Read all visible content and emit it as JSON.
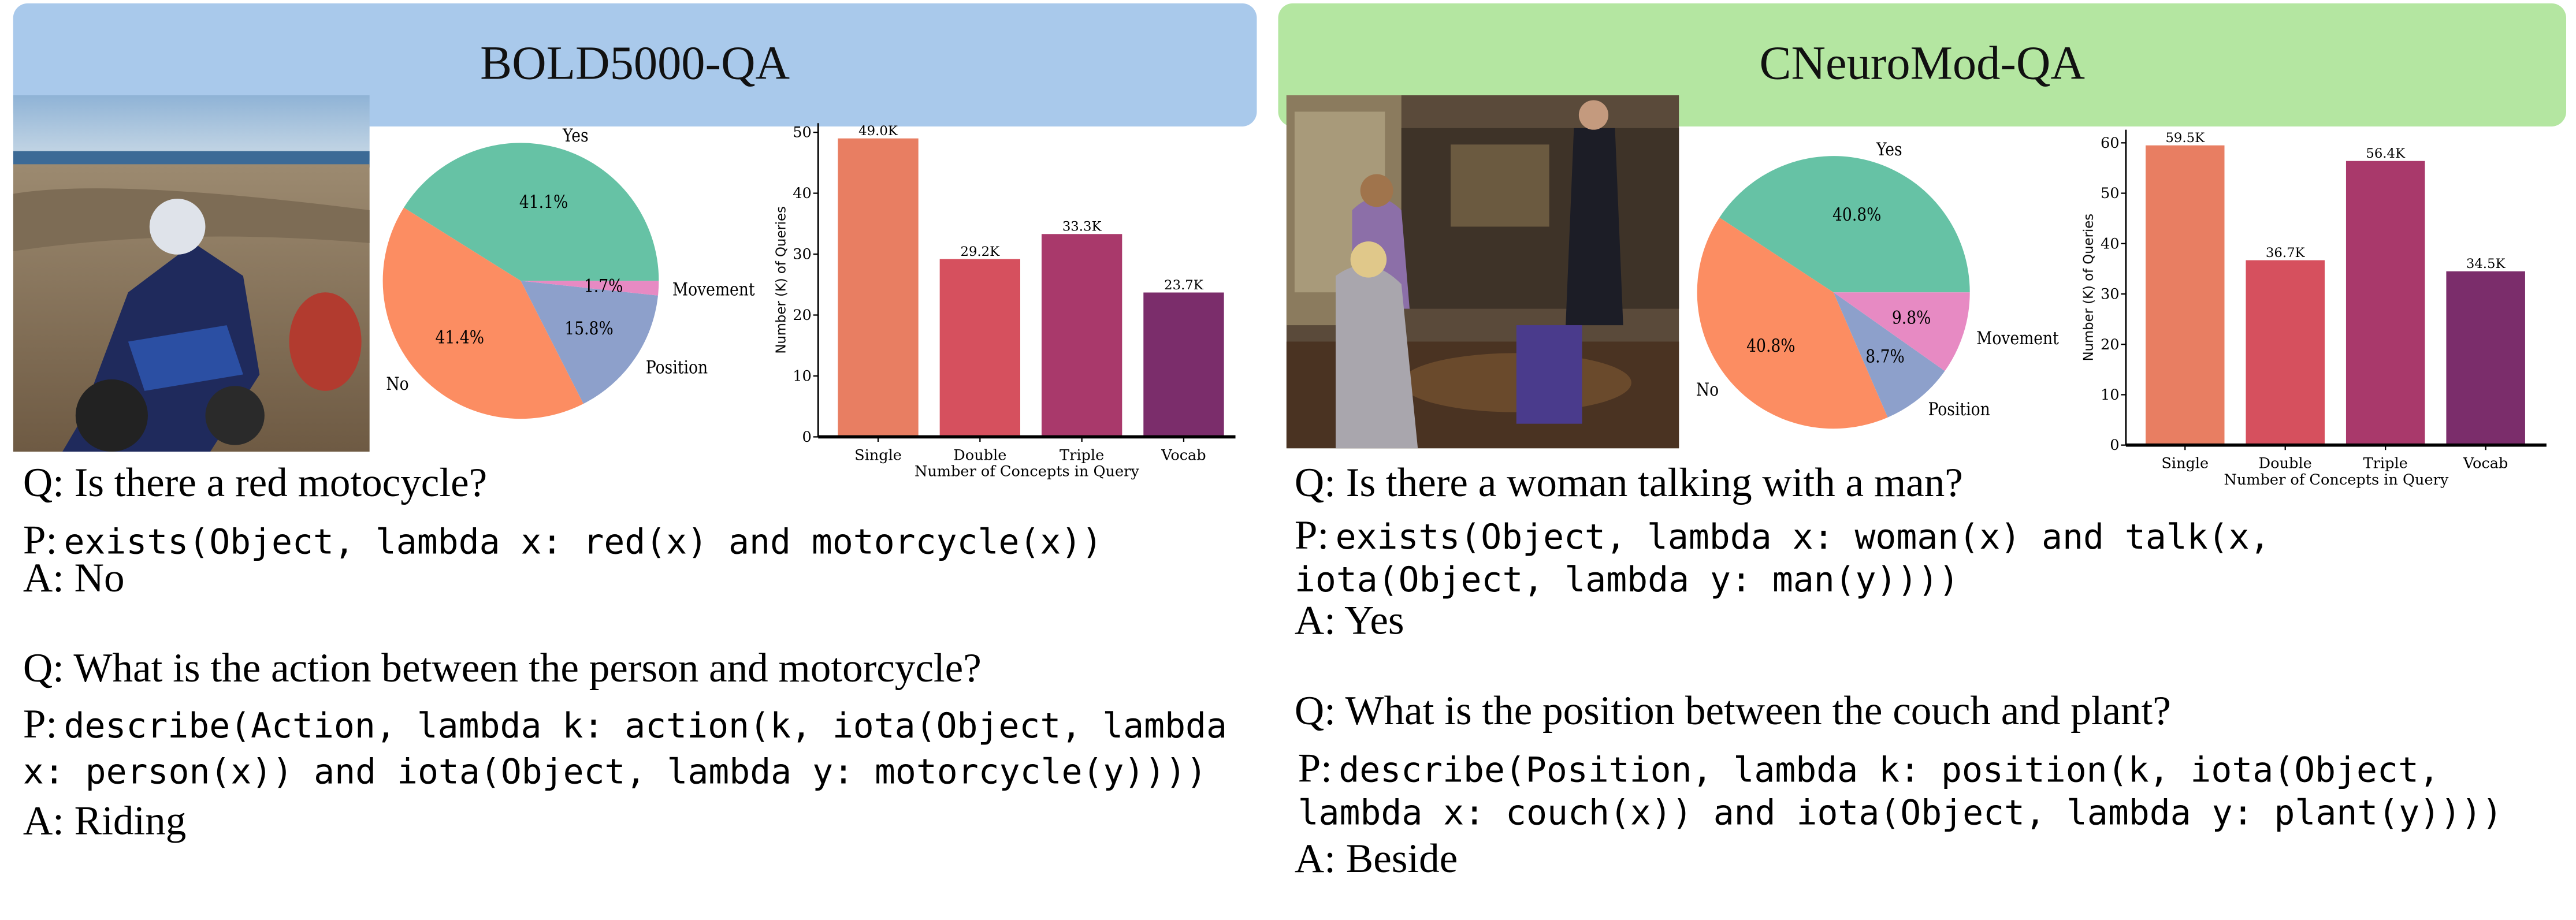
{
  "panels": [
    {
      "title": "BOLD5000-QA",
      "header_color": "#a9c9eb",
      "image": "motocross-rider-photo",
      "examples": [
        {
          "q": "Q: Is there a red motocycle?",
          "p_prefix": "P:",
          "p_lines": [
            "exists(Object, lambda x: red(x) and motorcycle(x))"
          ],
          "a": "A: No"
        },
        {
          "q": "Q: What is the action between the person and motorcycle?",
          "p_prefix": "P:",
          "p_lines": [
            "describe(Action, lambda k: action(k, iota(Object, lambda",
            "x: person(x)) and iota(Object, lambda y: motorcycle(y))))"
          ],
          "a": "A: Riding"
        }
      ]
    },
    {
      "title": "CNeuroMod-QA",
      "header_color": "#b4e6a1",
      "image": "sitcom-living-room-photo",
      "examples": [
        {
          "q": "Q: Is there a woman talking with a man?",
          "p_prefix": "P:",
          "p_lines": [
            "exists(Object, lambda x: woman(x) and talk(x,",
            "iota(Object, lambda y: man(y))))"
          ],
          "a": "A: Yes"
        },
        {
          "q": "Q: What is the position between the couch and plant?",
          "p_prefix": "P:",
          "p_lines": [
            "describe(Position, lambda k: position(k, iota(Object,",
            "lambda x: couch(x)) and iota(Object, lambda y: plant(y))))"
          ],
          "a": "A: Beside"
        }
      ]
    }
  ],
  "chart_data": [
    {
      "type": "pie",
      "dataset": "BOLD5000-QA",
      "labels": [
        "Yes",
        "No",
        "Position",
        "Movement"
      ],
      "values": [
        41.1,
        41.4,
        15.8,
        1.7
      ],
      "pct_labels": [
        "41.1%",
        "41.4%",
        "15.8%",
        "1.7%"
      ],
      "colors": [
        "#66c2a5",
        "#fc8d62",
        "#8da0cb",
        "#e78ac3"
      ],
      "start_angle": 0,
      "direction": "counterclockwise"
    },
    {
      "type": "bar",
      "dataset": "BOLD5000-QA",
      "categories": [
        "Single",
        "Double",
        "Triple",
        "Vocab"
      ],
      "values": [
        49.0,
        29.2,
        33.3,
        23.7
      ],
      "value_labels": [
        "49.0K",
        "29.2K",
        "33.3K",
        "23.7K"
      ],
      "colors": [
        "#e87e62",
        "#d6505e",
        "#a9396b",
        "#7b2d6b"
      ],
      "xlabel": "Number of Concepts in Query",
      "ylabel": "Number (K) of Queries",
      "yticks": [
        0,
        10,
        20,
        30,
        40,
        50
      ],
      "ylim": [
        0,
        51.5
      ],
      "grid": false
    },
    {
      "type": "pie",
      "dataset": "CNeuroMod-QA",
      "labels": [
        "Yes",
        "No",
        "Position",
        "Movement"
      ],
      "values": [
        40.8,
        40.8,
        8.7,
        9.8
      ],
      "pct_labels": [
        "40.8%",
        "40.8%",
        "8.7%",
        "9.8%"
      ],
      "colors": [
        "#66c2a5",
        "#fc8d62",
        "#8da0cb",
        "#e78ac3"
      ],
      "start_angle": 0,
      "direction": "counterclockwise"
    },
    {
      "type": "bar",
      "dataset": "CNeuroMod-QA",
      "categories": [
        "Single",
        "Double",
        "Triple",
        "Vocab"
      ],
      "values": [
        59.5,
        36.7,
        56.4,
        34.5
      ],
      "value_labels": [
        "59.5K",
        "36.7K",
        "56.4K",
        "34.5K"
      ],
      "colors": [
        "#e87e62",
        "#d6505e",
        "#a9396b",
        "#7b2d6b"
      ],
      "xlabel": "Number of Concepts in Query",
      "ylabel": "Number (K) of Queries",
      "yticks": [
        0,
        10,
        20,
        30,
        40,
        50,
        60
      ],
      "ylim": [
        0,
        62.6
      ],
      "grid": false
    }
  ]
}
